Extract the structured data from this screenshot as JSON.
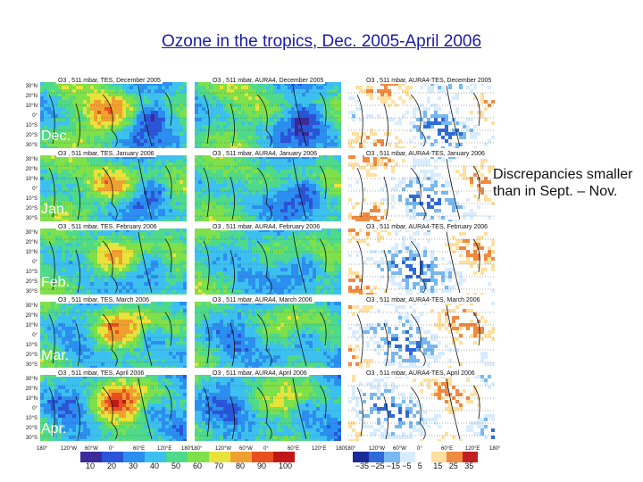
{
  "title": "Ozone in the tropics, Dec. 2005-April 2006",
  "note": "Discrepancies smaller than in Sept. – Nov.",
  "months": [
    "Dec.",
    "Jan.",
    "Feb.",
    "Mar.",
    "Apr."
  ],
  "columns": [
    {
      "panel_titles": [
        "O3 , 511 mbar, TES, December 2005",
        "O3 , 511 mbar, TES, January 2006",
        "O3 , 511 mbar, TES, February 2006",
        "O3 , 511 mbar, TES, March 2006",
        "O3 , 511 mbar, TES, April 2006"
      ]
    },
    {
      "panel_titles": [
        "O3 , 511 mbar, AURA4, December 2005",
        "O3 , 511 mbar, AURA4, January 2006",
        "O3 , 511 mbar, AURA4, February 2006",
        "O3 , 511 mbar, AURA4, March 2006",
        "O3 , 511 mbar, AURA4, April 2006"
      ]
    },
    {
      "panel_titles": [
        "O3 , 511 mbar, AURA4-TES, December 2005",
        "O3 , 511 mbar, AURA4-TES, January 2006",
        "O3 , 511 mbar, AURA4-TES, February 2006",
        "O3 , 511 mbar, AURA4-TES, March 2006",
        "O3 , 511 mbar, AURA4-TES, April 2006"
      ]
    }
  ],
  "lat_ticks": [
    "30°N",
    "20°N",
    "10°N",
    "0°",
    "10°S",
    "20°S",
    "30°S"
  ],
  "lon_ticks": [
    "180°",
    "120°W",
    "60°W",
    "0°",
    "60°E",
    "120°E",
    "180°"
  ],
  "colorbar_abs": {
    "labels": [
      "10",
      "20",
      "30",
      "40",
      "50",
      "60",
      "70",
      "80",
      "90",
      "100"
    ]
  },
  "colorbar_diff": {
    "labels": [
      "−35",
      "−25",
      "−15",
      "−5",
      "5",
      "15",
      "25",
      "35"
    ]
  },
  "colors": {
    "title": "#1a1aa8",
    "abs_scale": [
      "#3c2a9a",
      "#2a55d8",
      "#2c8ef0",
      "#3cc0f0",
      "#4fd98a",
      "#7ee04a",
      "#e8e23a",
      "#f0a030",
      "#e85020",
      "#c01818"
    ],
    "diff_scale": [
      "#1a2a9a",
      "#2e6ad8",
      "#78b8f0",
      "#d8ecff",
      "#ffffff",
      "#ffe0a0",
      "#f08a40",
      "#c02020"
    ]
  }
}
